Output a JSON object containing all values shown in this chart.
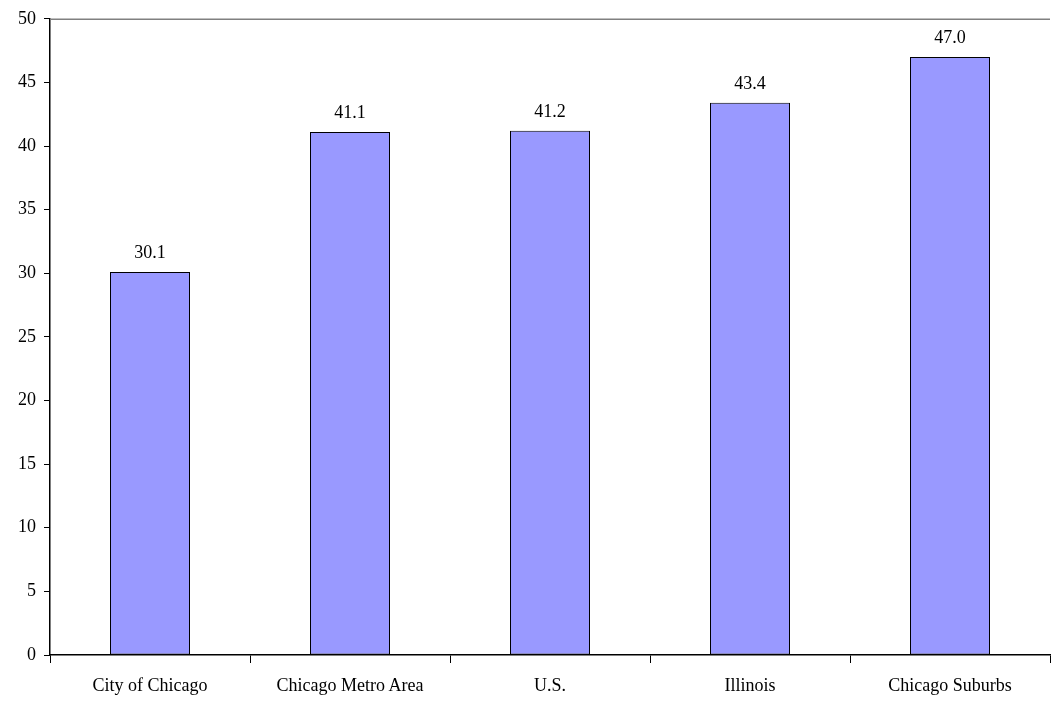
{
  "chart_data": {
    "type": "bar",
    "categories": [
      "City of Chicago",
      "Chicago Metro Area",
      "U.S.",
      "Illinois",
      "Chicago Suburbs"
    ],
    "values": [
      30.1,
      41.1,
      41.2,
      43.4,
      47.0
    ],
    "value_labels": [
      "30.1",
      "41.1",
      "41.2",
      "43.4",
      "47.0"
    ],
    "color": "#9999ff",
    "ylim": [
      0,
      50
    ],
    "yticks": [
      0,
      5,
      10,
      15,
      20,
      25,
      30,
      35,
      40,
      45,
      50
    ],
    "grid": false,
    "legend": false
  }
}
